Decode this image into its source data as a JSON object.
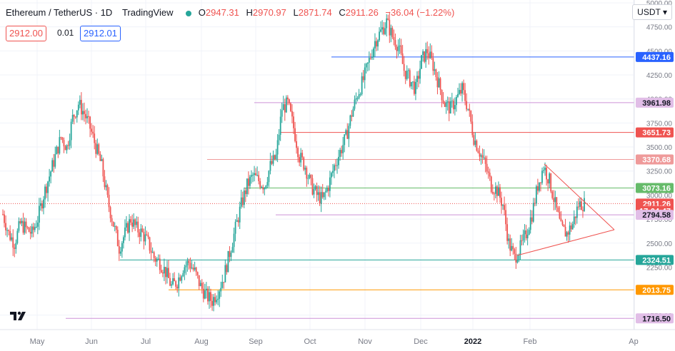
{
  "header": {
    "symbol": "Ethereum / TetherUS · 1D",
    "brand": "TradingView",
    "o_label": "O",
    "o_value": "2947.31",
    "h_label": "H",
    "h_value": "2970.97",
    "l_label": "L",
    "l_value": "2871.74",
    "c_label": "C",
    "c_value": "2911.26",
    "change": "−36.04 (−1.22%)"
  },
  "trade": {
    "sell": "2912.00",
    "spread": "0.01",
    "buy": "2912.01"
  },
  "currency": "USDT",
  "colors": {
    "up": "#26a69a",
    "down": "#ef5350",
    "grid": "#f0f3fa"
  },
  "chart_data": {
    "type": "candlestick",
    "y_ticks": [
      "5000.00",
      "4750.00",
      "4500.00",
      "4250.00",
      "4000.00",
      "3750.00",
      "3500.00",
      "3250.00",
      "3000.00",
      "2750.00",
      "2500.00",
      "2250.00",
      "1750.00"
    ],
    "x_ticks": [
      "May",
      "Jun",
      "Jul",
      "Aug",
      "Sep",
      "Oct",
      "Nov",
      "Dec",
      "2022",
      "Feb",
      "Ap"
    ],
    "ylim": [
      1600,
      5000
    ],
    "close_series": [
      [
        0,
        2800
      ],
      [
        4,
        2600
      ],
      [
        8,
        2500
      ],
      [
        12,
        2700
      ],
      [
        16,
        2650
      ],
      [
        20,
        2600
      ],
      [
        24,
        2750
      ],
      [
        28,
        3000
      ],
      [
        32,
        3200
      ],
      [
        36,
        3400
      ],
      [
        40,
        3600
      ],
      [
        44,
        3500
      ],
      [
        48,
        3800
      ],
      [
        52,
        3950
      ],
      [
        56,
        3850
      ],
      [
        60,
        3700
      ],
      [
        64,
        3500
      ],
      [
        68,
        3300
      ],
      [
        72,
        2950
      ],
      [
        76,
        2700
      ],
      [
        80,
        2450
      ],
      [
        84,
        2600
      ],
      [
        88,
        2750
      ],
      [
        92,
        2650
      ],
      [
        96,
        2600
      ],
      [
        100,
        2500
      ],
      [
        104,
        2350
      ],
      [
        108,
        2300
      ],
      [
        112,
        2200
      ],
      [
        116,
        2050
      ],
      [
        120,
        2100
      ],
      [
        124,
        2250
      ],
      [
        128,
        2300
      ],
      [
        132,
        2200
      ],
      [
        136,
        2050
      ],
      [
        140,
        1950
      ],
      [
        144,
        1900
      ],
      [
        148,
        2000
      ],
      [
        152,
        2150
      ],
      [
        156,
        2400
      ],
      [
        160,
        2650
      ],
      [
        164,
        2900
      ],
      [
        168,
        3100
      ],
      [
        172,
        3200
      ],
      [
        176,
        3150
      ],
      [
        180,
        3100
      ],
      [
        184,
        3300
      ],
      [
        188,
        3400
      ],
      [
        192,
        3900
      ],
      [
        196,
        3950
      ],
      [
        200,
        3700
      ],
      [
        204,
        3400
      ],
      [
        208,
        3300
      ],
      [
        212,
        3100
      ],
      [
        216,
        3000
      ],
      [
        220,
        2950
      ],
      [
        224,
        3100
      ],
      [
        228,
        3300
      ],
      [
        232,
        3450
      ],
      [
        236,
        3600
      ],
      [
        240,
        3850
      ],
      [
        244,
        4050
      ],
      [
        248,
        4200
      ],
      [
        252,
        4400
      ],
      [
        256,
        4600
      ],
      [
        260,
        4700
      ],
      [
        264,
        4800
      ],
      [
        268,
        4650
      ],
      [
        272,
        4550
      ],
      [
        276,
        4300
      ],
      [
        280,
        4200
      ],
      [
        284,
        4100
      ],
      [
        288,
        4400
      ],
      [
        292,
        4500
      ],
      [
        296,
        4350
      ],
      [
        300,
        4150
      ],
      [
        304,
        3950
      ],
      [
        308,
        3900
      ],
      [
        312,
        4000
      ],
      [
        316,
        4100
      ],
      [
        320,
        3900
      ],
      [
        324,
        3600
      ],
      [
        328,
        3450
      ],
      [
        332,
        3300
      ],
      [
        336,
        3100
      ],
      [
        340,
        3050
      ],
      [
        344,
        2900
      ],
      [
        348,
        2500
      ],
      [
        352,
        2350
      ],
      [
        356,
        2450
      ],
      [
        360,
        2600
      ],
      [
        364,
        2800
      ],
      [
        368,
        3100
      ],
      [
        372,
        3300
      ],
      [
        376,
        3150
      ],
      [
        380,
        2900
      ],
      [
        384,
        2650
      ],
      [
        388,
        2600
      ],
      [
        392,
        2700
      ],
      [
        396,
        2900
      ],
      [
        400,
        2911.26
      ]
    ],
    "price_levels": [
      {
        "label": "4437.16",
        "value": 4437.16,
        "color": "#2962ff"
      },
      {
        "label": "3961.98",
        "value": 3961.98,
        "color": "#ce93d8"
      },
      {
        "label": "3651.73",
        "value": 3651.73,
        "color": "#ef5350"
      },
      {
        "label": "3370.68",
        "value": 3370.68,
        "color": "#ef9a9a"
      },
      {
        "label": "3073.16",
        "value": 3073.16,
        "color": "#66bb6a"
      },
      {
        "label": "2911.26",
        "value": 2911.26,
        "color": "#ef5350"
      },
      {
        "label": "17:04:47",
        "value": 2835,
        "color": "#ef5350"
      },
      {
        "label": "2794.58",
        "value": 2794.58,
        "color": "#ce93d8"
      },
      {
        "label": "2324.51",
        "value": 2324.51,
        "color": "#26a69a"
      },
      {
        "label": "2013.75",
        "value": 2013.75,
        "color": "#ff9800"
      },
      {
        "label": "1716.50",
        "value": 1716.5,
        "color": "#ce93d8"
      }
    ]
  }
}
